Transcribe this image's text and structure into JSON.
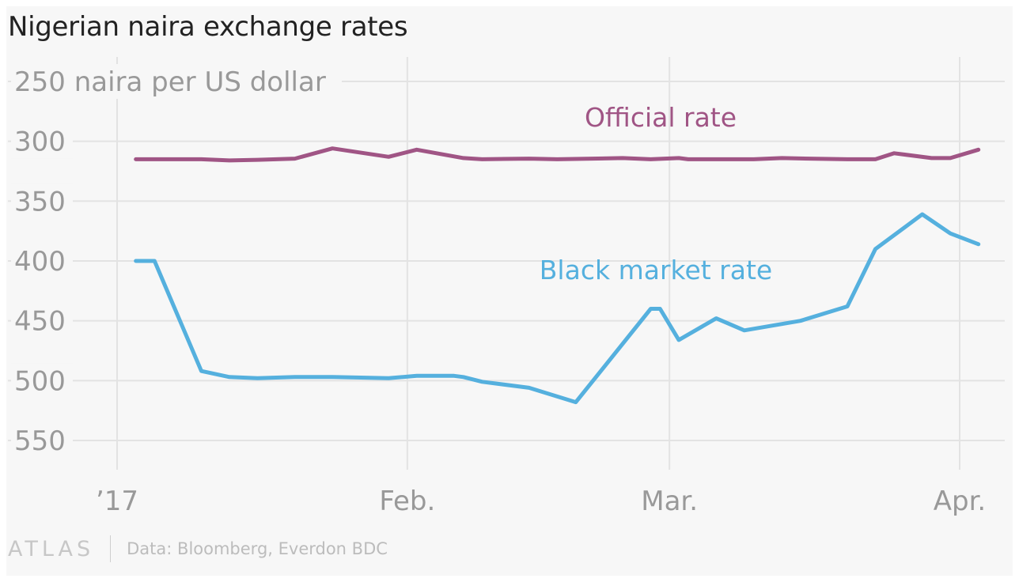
{
  "title": "Nigerian naira exchange rates",
  "footer": {
    "logo_text": "ATLAS",
    "source": "Data: Bloomberg, Everdon BDC"
  },
  "colors": {
    "official": "#a05585",
    "black_market": "#55b0de",
    "grid": "#e3e3e3",
    "tick_text": "#999999",
    "background": "#f7f7f7"
  },
  "chart_data": {
    "type": "line",
    "title": "Nigerian naira exchange rates",
    "ylabel": "naira per US dollar",
    "y_axis_inverted": true,
    "ylim": [
      250,
      550
    ],
    "yticks": [
      250,
      300,
      350,
      400,
      450,
      500,
      550
    ],
    "ytick_labels": [
      "250 naira per US dollar",
      "300",
      "350",
      "400",
      "450",
      "500",
      "550"
    ],
    "xlim": [
      "2017-01-01",
      "2017-04-04"
    ],
    "xticks": [
      {
        "date": "2017-01-01",
        "label": "’17"
      },
      {
        "date": "2017-02-01",
        "label": "Feb."
      },
      {
        "date": "2017-03-01",
        "label": "Mar."
      },
      {
        "date": "2017-04-01",
        "label": "Apr."
      }
    ],
    "grid": true,
    "legend": "inline labels",
    "series": [
      {
        "name": "Official rate",
        "color": "#a05585",
        "points": [
          [
            "2017-01-03",
            315
          ],
          [
            "2017-01-05",
            315
          ],
          [
            "2017-01-10",
            315
          ],
          [
            "2017-01-13",
            316
          ],
          [
            "2017-01-16",
            315.5
          ],
          [
            "2017-01-20",
            314.5
          ],
          [
            "2017-01-24",
            306
          ],
          [
            "2017-01-30",
            313
          ],
          [
            "2017-02-02",
            307
          ],
          [
            "2017-02-07",
            314
          ],
          [
            "2017-02-09",
            315
          ],
          [
            "2017-02-14",
            314.5
          ],
          [
            "2017-02-17",
            315
          ],
          [
            "2017-02-24",
            314
          ],
          [
            "2017-02-27",
            315
          ],
          [
            "2017-03-02",
            314
          ],
          [
            "2017-03-03",
            315
          ],
          [
            "2017-03-10",
            315
          ],
          [
            "2017-03-13",
            314
          ],
          [
            "2017-03-16",
            314.5
          ],
          [
            "2017-03-20",
            315
          ],
          [
            "2017-03-23",
            315
          ],
          [
            "2017-03-25",
            310
          ],
          [
            "2017-03-29",
            314
          ],
          [
            "2017-03-31",
            314
          ],
          [
            "2017-04-03",
            307
          ]
        ]
      },
      {
        "name": "Black market rate",
        "color": "#55b0de",
        "points": [
          [
            "2017-01-03",
            400
          ],
          [
            "2017-01-05",
            400
          ],
          [
            "2017-01-10",
            492
          ],
          [
            "2017-01-13",
            497
          ],
          [
            "2017-01-16",
            498
          ],
          [
            "2017-01-20",
            497
          ],
          [
            "2017-01-24",
            497
          ],
          [
            "2017-01-30",
            498
          ],
          [
            "2017-02-02",
            496
          ],
          [
            "2017-02-06",
            496
          ],
          [
            "2017-02-07",
            497
          ],
          [
            "2017-02-09",
            501
          ],
          [
            "2017-02-14",
            506
          ],
          [
            "2017-02-19",
            518
          ],
          [
            "2017-02-27",
            440
          ],
          [
            "2017-02-28",
            440
          ],
          [
            "2017-03-02",
            466
          ],
          [
            "2017-03-06",
            448
          ],
          [
            "2017-03-09",
            458
          ],
          [
            "2017-03-15",
            450
          ],
          [
            "2017-03-20",
            438
          ],
          [
            "2017-03-23",
            390
          ],
          [
            "2017-03-28",
            361
          ],
          [
            "2017-03-31",
            377
          ],
          [
            "2017-04-03",
            386
          ]
        ]
      }
    ],
    "annotations": [
      {
        "text": "Official rate",
        "series": "Official rate"
      },
      {
        "text": "Black market rate",
        "series": "Black market rate"
      }
    ]
  }
}
